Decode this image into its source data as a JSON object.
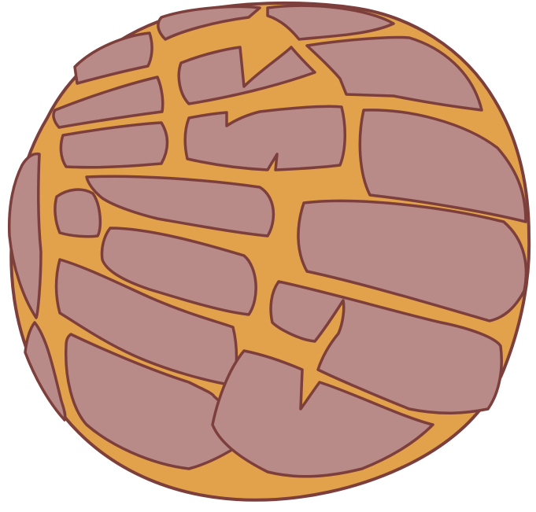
{
  "image": {
    "subject": "concha",
    "colors": {
      "background": "#ffffff",
      "crust": "#e2a24c",
      "topping": "#b88a88",
      "outline": "#7d3f3c"
    }
  }
}
